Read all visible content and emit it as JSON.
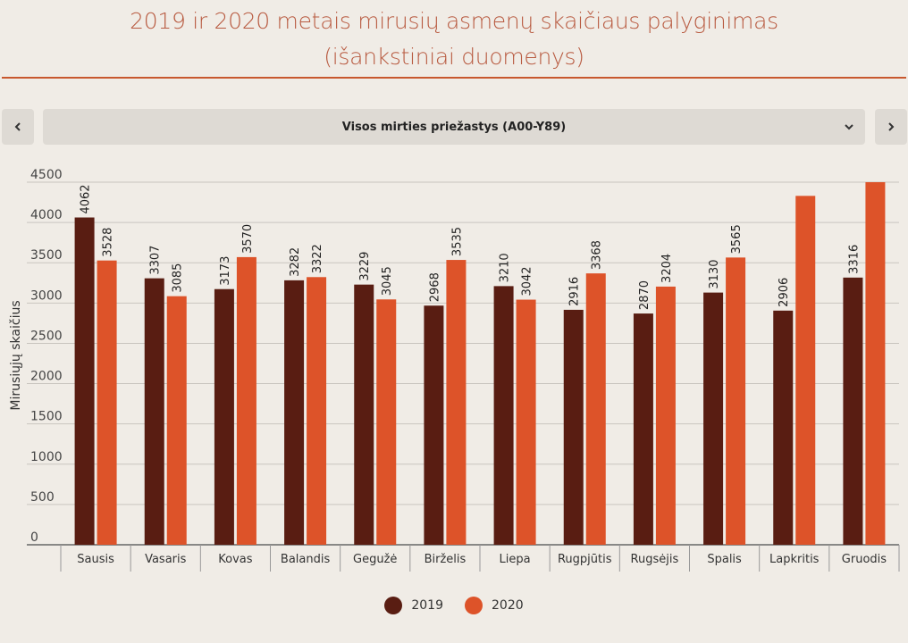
{
  "title_line1": "2019 ir 2020 metais mirusių asmenų skaičiaus palyginimas",
  "title_line2": "(išankstiniai duomenys)",
  "dropdown": {
    "selected": "Visos mirties priežastys (A00-Y89)"
  },
  "colors": {
    "y2019": "#591d12",
    "y2020": "#dd5329",
    "accent": "#c8582e"
  },
  "legend": [
    {
      "label": "2019",
      "color": "#591d12"
    },
    {
      "label": "2020",
      "color": "#dd5329"
    }
  ],
  "chart_data": {
    "type": "bar",
    "title": "2019 ir 2020 metais mirusių asmenų skaičiaus palyginimas (išankstiniai duomenys)",
    "ylabel": "Mirusiųjų skaičius",
    "xlabel": "",
    "ylim": [
      0,
      4500
    ],
    "yticks": [
      0,
      500,
      1000,
      1500,
      2000,
      2500,
      3000,
      3500,
      4000,
      4500
    ],
    "grid": true,
    "legend_position": "bottom",
    "categories": [
      "Sausis",
      "Vasaris",
      "Kovas",
      "Balandis",
      "Gegužė",
      "Birželis",
      "Liepa",
      "Rugpjūtis",
      "Rugsėjis",
      "Spalis",
      "Lapkritis",
      "Gruodis"
    ],
    "series": [
      {
        "name": "2019",
        "values": [
          4062,
          3307,
          3173,
          3282,
          3229,
          2968,
          3210,
          2916,
          2870,
          3130,
          2906,
          3316
        ],
        "labels": [
          "4062",
          "3307",
          "3173",
          "3282",
          "3229",
          "2968",
          "3210",
          "2916",
          "2870",
          "3130",
          "2906",
          "3316"
        ]
      },
      {
        "name": "2020",
        "values": [
          3528,
          3085,
          3570,
          3322,
          3045,
          3535,
          3042,
          3368,
          3204,
          3565,
          4330,
          4500
        ],
        "labels": [
          "3528",
          "3085",
          "3570",
          "3322",
          "3045",
          "3535",
          "3042",
          "3368",
          "3204",
          "3565",
          "",
          ""
        ]
      }
    ]
  }
}
